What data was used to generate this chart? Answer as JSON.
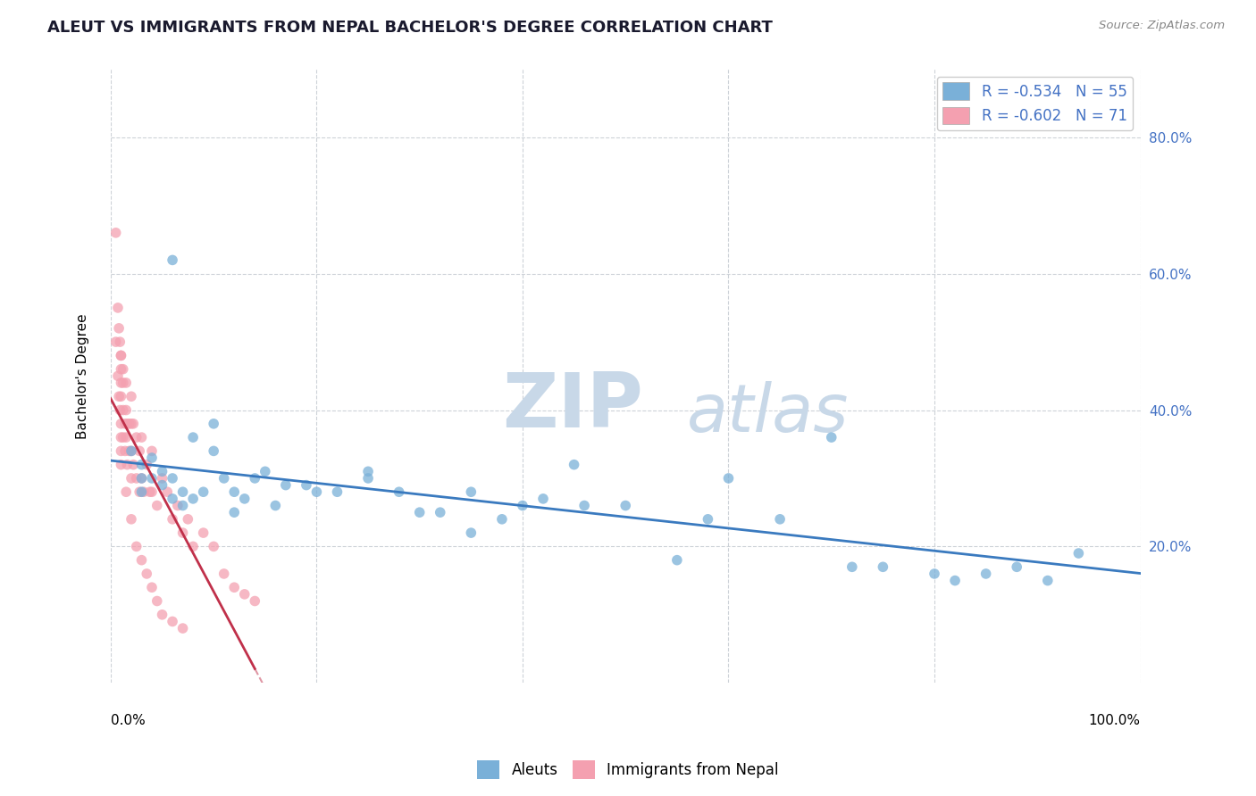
{
  "title": "ALEUT VS IMMIGRANTS FROM NEPAL BACHELOR'S DEGREE CORRELATION CHART",
  "source": "Source: ZipAtlas.com",
  "ylabel": "Bachelor's Degree",
  "aleuts_color": "#7ab0d8",
  "nepal_color": "#f4a0b0",
  "trendline_aleuts_color": "#3a7abf",
  "trendline_nepal_color": "#c0304a",
  "background_color": "#ffffff",
  "watermark_zip": "ZIP",
  "watermark_atlas": "atlas",
  "watermark_color": "#c8d8e8",
  "grid_color": "#c8ced4",
  "ytick_values": [
    0.2,
    0.4,
    0.6,
    0.8
  ],
  "xlim": [
    0.0,
    1.0
  ],
  "ylim": [
    0.0,
    0.9
  ],
  "aleuts_x": [
    0.02,
    0.03,
    0.03,
    0.03,
    0.04,
    0.04,
    0.05,
    0.05,
    0.06,
    0.06,
    0.07,
    0.07,
    0.08,
    0.09,
    0.1,
    0.11,
    0.12,
    0.13,
    0.14,
    0.16,
    0.17,
    0.19,
    0.22,
    0.25,
    0.28,
    0.32,
    0.35,
    0.38,
    0.42,
    0.46,
    0.5,
    0.55,
    0.58,
    0.6,
    0.65,
    0.7,
    0.72,
    0.75,
    0.8,
    0.82,
    0.85,
    0.88,
    0.91,
    0.94,
    0.06,
    0.08,
    0.1,
    0.12,
    0.15,
    0.2,
    0.25,
    0.3,
    0.35,
    0.4,
    0.45
  ],
  "aleuts_y": [
    0.34,
    0.32,
    0.3,
    0.28,
    0.33,
    0.3,
    0.31,
    0.29,
    0.62,
    0.3,
    0.28,
    0.26,
    0.36,
    0.28,
    0.34,
    0.3,
    0.28,
    0.27,
    0.3,
    0.26,
    0.29,
    0.29,
    0.28,
    0.31,
    0.28,
    0.25,
    0.28,
    0.24,
    0.27,
    0.26,
    0.26,
    0.18,
    0.24,
    0.3,
    0.24,
    0.36,
    0.17,
    0.17,
    0.16,
    0.15,
    0.16,
    0.17,
    0.15,
    0.19,
    0.27,
    0.27,
    0.38,
    0.25,
    0.31,
    0.28,
    0.3,
    0.25,
    0.22,
    0.26,
    0.32
  ],
  "nepal_x": [
    0.005,
    0.005,
    0.007,
    0.007,
    0.008,
    0.008,
    0.009,
    0.009,
    0.01,
    0.01,
    0.01,
    0.01,
    0.01,
    0.01,
    0.01,
    0.01,
    0.01,
    0.012,
    0.012,
    0.012,
    0.012,
    0.014,
    0.014,
    0.015,
    0.015,
    0.015,
    0.016,
    0.016,
    0.018,
    0.018,
    0.02,
    0.02,
    0.02,
    0.02,
    0.022,
    0.022,
    0.025,
    0.025,
    0.028,
    0.028,
    0.03,
    0.03,
    0.032,
    0.035,
    0.038,
    0.04,
    0.04,
    0.045,
    0.05,
    0.055,
    0.06,
    0.065,
    0.07,
    0.075,
    0.08,
    0.09,
    0.1,
    0.11,
    0.12,
    0.13,
    0.14,
    0.015,
    0.02,
    0.025,
    0.03,
    0.035,
    0.04,
    0.045,
    0.05,
    0.06,
    0.07
  ],
  "nepal_y": [
    0.66,
    0.5,
    0.55,
    0.45,
    0.52,
    0.42,
    0.5,
    0.4,
    0.48,
    0.46,
    0.44,
    0.42,
    0.38,
    0.36,
    0.34,
    0.32,
    0.48,
    0.46,
    0.44,
    0.4,
    0.36,
    0.38,
    0.34,
    0.44,
    0.4,
    0.36,
    0.38,
    0.32,
    0.38,
    0.34,
    0.42,
    0.38,
    0.34,
    0.3,
    0.38,
    0.32,
    0.36,
    0.3,
    0.34,
    0.28,
    0.36,
    0.3,
    0.28,
    0.32,
    0.28,
    0.34,
    0.28,
    0.26,
    0.3,
    0.28,
    0.24,
    0.26,
    0.22,
    0.24,
    0.2,
    0.22,
    0.2,
    0.16,
    0.14,
    0.13,
    0.12,
    0.28,
    0.24,
    0.2,
    0.18,
    0.16,
    0.14,
    0.12,
    0.1,
    0.09,
    0.08
  ]
}
